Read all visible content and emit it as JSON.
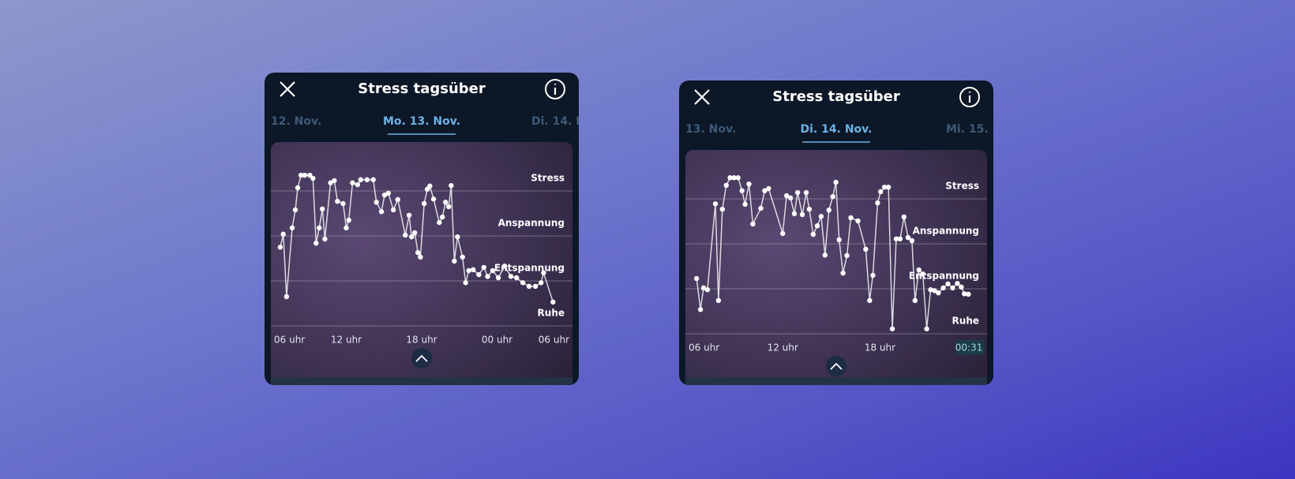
{
  "panels": [
    {
      "header": {
        "title": "Stress tagsüber"
      },
      "tabs": {
        "prev": "12. Nov.",
        "current": "Mo. 13. Nov.",
        "next": "Di. 14. N"
      },
      "chart_data": {
        "type": "line",
        "color": "#ffffff",
        "grid": true,
        "x": [
          6.75,
          6.99,
          7.25,
          7.7,
          7.95,
          8.14,
          8.4,
          8.7,
          9.1,
          9.35,
          9.6,
          9.85,
          10.1,
          10.3,
          10.75,
          11.05,
          11.3,
          11.75,
          12,
          12.2,
          12.5,
          12.9,
          13.15,
          13.65,
          14.15,
          14.4,
          14.8,
          15.05,
          15.35,
          15.75,
          16.1,
          16.7,
          17,
          17.2,
          17.45,
          17.7,
          17.9,
          18.2,
          18.45,
          18.65,
          18.95,
          19.4,
          19.65,
          19.9,
          20.15,
          20.35,
          20.6,
          20.85,
          21.25,
          21.5,
          21.75,
          22.1,
          22.55,
          22.95,
          23.25,
          23.65,
          24.1,
          24.6,
          25.1,
          25.55,
          26.05,
          26.55,
          27.05,
          27.5,
          27.7,
          28.45
        ],
        "values": [
          1.75,
          2.04,
          0.65,
          2.18,
          2.58,
          3.07,
          3.35,
          3.35,
          3.35,
          3.28,
          1.84,
          2.18,
          2.6,
          1.93,
          3.18,
          3.23,
          2.77,
          2.72,
          2.18,
          2.35,
          3.18,
          3.14,
          3.25,
          3.25,
          3.25,
          2.75,
          2.54,
          2.91,
          2.95,
          2.58,
          2.81,
          2.02,
          2.46,
          1.98,
          2.07,
          1.63,
          1.53,
          2.72,
          3.04,
          3.11,
          2.82,
          2.3,
          2.42,
          2.75,
          2.65,
          3.12,
          1.44,
          1.98,
          1.53,
          0.96,
          1.23,
          1.25,
          1.14,
          1.3,
          1.1,
          1.23,
          1.07,
          1.33,
          1.1,
          1.07,
          0.96,
          0.88,
          0.88,
          0.96,
          1.18,
          0.53
        ],
        "xlim": [
          6,
          30
        ],
        "xticks": [
          {
            "value": 6,
            "label": "06 uhr"
          },
          {
            "value": 12,
            "label": "12 uhr"
          },
          {
            "value": 18,
            "label": "18 uhr"
          },
          {
            "value": 24,
            "label": "00 uhr"
          },
          {
            "value": 30,
            "label": "06 uhr"
          }
        ],
        "ylim": [
          0,
          4
        ],
        "yticks": [
          {
            "value": 0,
            "label": "Ruhe"
          },
          {
            "value": 1,
            "label": "Entspannung"
          },
          {
            "value": 2,
            "label": "Anspannung"
          },
          {
            "value": 3,
            "label": "Stress"
          }
        ]
      }
    },
    {
      "header": {
        "title": "Stress tagsüber"
      },
      "tabs": {
        "prev": "13. Nov.",
        "current": "Di. 14. Nov.",
        "next": "Mi. 15. N"
      },
      "chart_data": {
        "type": "line",
        "color": "#ffffff",
        "grid": true,
        "x": [
          6.69,
          6.93,
          7.12,
          7.36,
          7.85,
          8.04,
          8.28,
          8.52,
          8.76,
          9.0,
          9.25,
          9.49,
          9.68,
          9.92,
          10.16,
          10.65,
          10.89,
          11.13,
          12.0,
          12.24,
          12.48,
          12.72,
          12.92,
          13.21,
          13.45,
          13.64,
          13.88,
          14.13,
          14.37,
          14.61,
          14.85,
          15.09,
          15.28,
          15.48,
          15.72,
          15.96,
          16.2,
          16.64,
          17.12,
          17.36,
          17.56,
          17.85,
          18.04,
          18.28,
          18.52,
          18.76,
          19.0,
          19.24,
          19.48,
          19.73,
          19.97,
          20.16,
          20.4,
          20.64,
          20.88,
          21.12,
          21.36,
          21.6,
          21.9,
          22.19,
          22.48,
          22.77,
          23.01,
          23.2,
          23.45
        ],
        "values": [
          1.23,
          0.54,
          1.02,
          0.98,
          2.89,
          0.74,
          2.77,
          3.3,
          3.47,
          3.47,
          3.47,
          3.18,
          2.88,
          3.33,
          2.44,
          2.79,
          3.18,
          3.23,
          2.23,
          3.07,
          3.02,
          2.67,
          3.14,
          2.65,
          3.14,
          2.77,
          2.21,
          2.4,
          2.61,
          1.75,
          2.75,
          3.05,
          3.37,
          2.09,
          1.35,
          1.74,
          2.58,
          2.51,
          1.88,
          0.74,
          1.3,
          2.91,
          3.16,
          3.26,
          3.26,
          0.11,
          2.11,
          2.11,
          2.6,
          2.14,
          2.07,
          0.74,
          1.42,
          1.33,
          0.11,
          0.98,
          0.96,
          0.91,
          1.02,
          1.11,
          1.02,
          1.12,
          1.04,
          0.89,
          0.88
        ],
        "xlim": [
          6,
          24.6
        ],
        "xticks": [
          {
            "value": 6,
            "label": "06 uhr"
          },
          {
            "value": 12,
            "label": "12 uhr"
          },
          {
            "value": 18,
            "label": "18 uhr"
          },
          {
            "value": 24.52,
            "label": "00:31"
          }
        ],
        "ylim": [
          0,
          4
        ],
        "yticks": [
          {
            "value": 0,
            "label": "Ruhe"
          },
          {
            "value": 1,
            "label": "Entspannung"
          },
          {
            "value": 2,
            "label": "Anspannung"
          },
          {
            "value": 3,
            "label": "Stress"
          }
        ]
      }
    }
  ]
}
